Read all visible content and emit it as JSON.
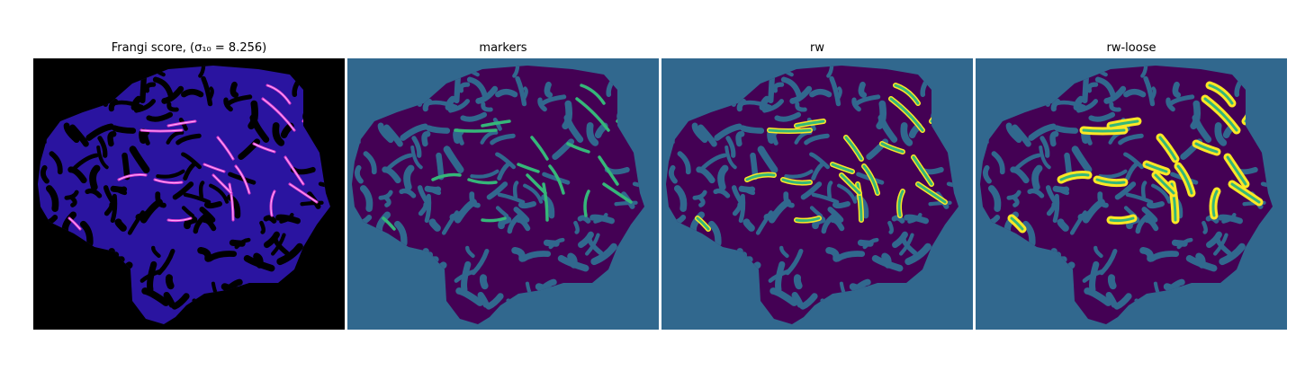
{
  "figure": {
    "panels": [
      {
        "id": "frangi",
        "title": "Frangi score, (σ₁₀ = 8.256)",
        "background": "#000000",
        "tissue": "#2a14a0",
        "holes": "#000000",
        "ridge": "#e040d0",
        "ridge_hot": "#ffb0ff"
      },
      {
        "id": "markers",
        "title": "markers",
        "background": "#31688e",
        "tissue": "#440154",
        "holes": "#31688e",
        "vessel": "#35b779"
      },
      {
        "id": "rw",
        "title": "rw",
        "background": "#31688e",
        "tissue": "#440154",
        "holes": "#31688e",
        "vessel": "#35b779",
        "edge": "#fde725"
      },
      {
        "id": "rw-loose",
        "title": "rw-loose",
        "background": "#31688e",
        "tissue": "#440154",
        "holes": "#31688e",
        "vessel": "#35b779",
        "edge": "#fde725"
      }
    ]
  }
}
